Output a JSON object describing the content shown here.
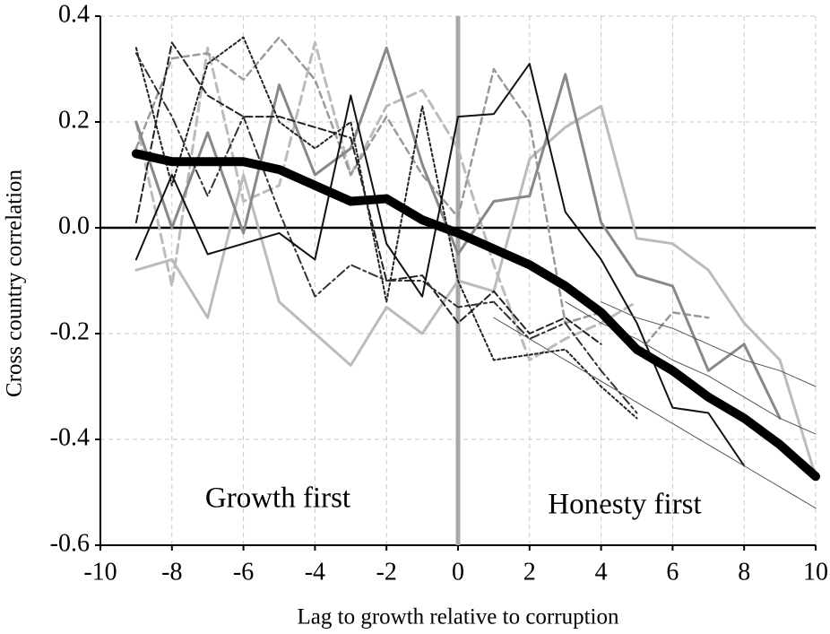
{
  "chart_data": {
    "type": "line",
    "xlabel": "Lag to growth relative to corruption",
    "ylabel": "Cross country correlation",
    "annotations": [
      "Growth first",
      "Honesty first"
    ],
    "x": [
      -9,
      -8,
      -7,
      -6,
      -5,
      -4,
      -3,
      -2,
      -1,
      0,
      1,
      2,
      3,
      4,
      5,
      6,
      7,
      8,
      9,
      10
    ],
    "xlim": [
      -10,
      10
    ],
    "xticks": [
      -10,
      -8,
      -6,
      -4,
      -2,
      0,
      2,
      4,
      6,
      8,
      10
    ],
    "ylim": [
      -0.6,
      0.4
    ],
    "yticks": [
      -0.6,
      -0.4,
      -0.2,
      {
        "value": 0,
        "label": "0.0"
      },
      0.2,
      0.4
    ],
    "grid": true,
    "series": [
      {
        "color": "#bbbbbb",
        "width": 3,
        "dash": "none",
        "values": [
          -0.08,
          -0.06,
          -0.17,
          0.1,
          -0.14,
          -0.2,
          -0.26,
          -0.15,
          -0.2,
          -0.1,
          -0.12,
          0.13,
          0.19,
          0.23,
          -0.02,
          -0.03,
          -0.08,
          -0.18,
          -0.25,
          -0.47
        ]
      },
      {
        "color": "#bbbbbb",
        "width": 3,
        "dash": "10 6",
        "values": [
          0.2,
          -0.11,
          0.34,
          0.05,
          0.08,
          0.35,
          0.1,
          0.23,
          0.26,
          0.15,
          -0.07,
          -0.25,
          -0.21,
          -0.18,
          -0.14,
          null,
          null,
          null,
          null,
          null
        ]
      },
      {
        "color": "#999999",
        "width": 2.5,
        "dash": "7 5",
        "values": [
          0.15,
          0.32,
          0.33,
          0.28,
          0.36,
          0.28,
          0.1,
          0.21,
          0.1,
          0.02,
          0.3,
          0.2,
          -0.18,
          -0.16,
          -0.24,
          -0.16,
          -0.17,
          null,
          null,
          null
        ]
      },
      {
        "color": "#888888",
        "width": 3,
        "dash": "none",
        "values": [
          0.2,
          0.0,
          0.18,
          -0.01,
          0.27,
          0.1,
          0.15,
          0.34,
          0.12,
          -0.05,
          0.05,
          0.06,
          0.29,
          0.01,
          -0.09,
          -0.11,
          -0.27,
          -0.22,
          -0.36,
          null
        ]
      },
      {
        "color": "#222222",
        "width": 2,
        "dash": "3 3",
        "values": [
          0.34,
          0.08,
          0.31,
          0.36,
          0.2,
          0.15,
          0.2,
          -0.14,
          0.23,
          -0.1,
          -0.25,
          -0.24,
          -0.23,
          -0.3,
          -0.36,
          null,
          null,
          null,
          null,
          null
        ]
      },
      {
        "color": "#222222",
        "width": 2,
        "dash": "8 4",
        "values": [
          0.01,
          0.35,
          0.25,
          0.21,
          0.21,
          0.19,
          0.17,
          -0.1,
          -0.09,
          -0.18,
          -0.12,
          -0.2,
          -0.17,
          -0.22,
          null,
          null,
          null,
          null,
          null,
          null
        ]
      },
      {
        "color": "#333333",
        "width": 2,
        "dash": "10 4 3 4",
        "values": [
          0.33,
          0.21,
          0.06,
          0.21,
          0.03,
          -0.13,
          -0.07,
          -0.1,
          -0.1,
          -0.15,
          -0.14,
          -0.21,
          -0.18,
          -0.27,
          -0.35,
          null,
          null,
          null,
          null,
          null
        ]
      },
      {
        "color": "#111111",
        "width": 2,
        "dash": "none",
        "values": [
          -0.06,
          0.1,
          -0.05,
          -0.03,
          -0.01,
          -0.06,
          0.25,
          -0.03,
          -0.13,
          0.21,
          0.215,
          0.31,
          0.03,
          -0.06,
          -0.18,
          -0.34,
          -0.35,
          -0.45,
          null,
          null
        ]
      },
      {
        "color": "#555555",
        "width": 1,
        "dash": "none",
        "values": [
          null,
          null,
          null,
          null,
          null,
          null,
          null,
          null,
          null,
          null,
          -0.17,
          -0.21,
          -0.25,
          -0.29,
          -0.33,
          -0.37,
          -0.41,
          -0.45,
          -0.49,
          -0.53
        ]
      },
      {
        "color": "#555555",
        "width": 1,
        "dash": "none",
        "values": [
          null,
          null,
          null,
          null,
          null,
          null,
          null,
          null,
          null,
          null,
          null,
          null,
          -0.14,
          -0.18,
          -0.21,
          -0.25,
          -0.28,
          -0.32,
          -0.36,
          -0.39
        ]
      },
      {
        "color": "#555555",
        "width": 1,
        "dash": "none",
        "values": [
          null,
          null,
          null,
          null,
          null,
          null,
          null,
          null,
          null,
          null,
          null,
          null,
          null,
          -0.14,
          -0.17,
          -0.19,
          -0.22,
          -0.25,
          -0.27,
          -0.3
        ]
      },
      {
        "color": "#000000",
        "width": 10,
        "dash": "none",
        "values": [
          0.14,
          0.125,
          0.125,
          0.125,
          0.11,
          0.08,
          0.05,
          0.055,
          0.015,
          -0.01,
          -0.04,
          -0.07,
          -0.11,
          -0.16,
          -0.23,
          -0.27,
          -0.32,
          -0.36,
          -0.41,
          -0.47
        ]
      }
    ]
  }
}
